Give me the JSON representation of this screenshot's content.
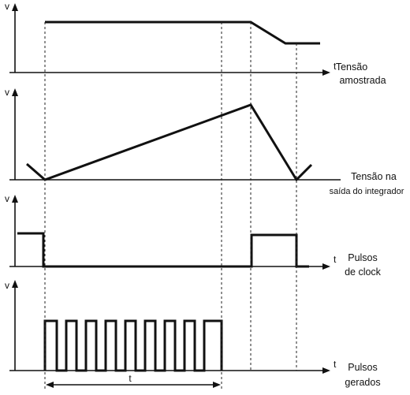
{
  "axis_labels": {
    "v1": "v",
    "t1": "t",
    "v2": "v",
    "v3": "v",
    "t3": "t",
    "v4": "v",
    "t4": "t",
    "t_bottom": "t"
  },
  "captions": {
    "signal1_line1": "Tensão",
    "signal1_line2": "amostrada",
    "signal2_line1": "Tensão na",
    "signal2_line2": "saída do integrador",
    "signal3_line1": "Pulsos",
    "signal3_line2": "de clock",
    "signal4_line1": "Pulsos",
    "signal4_line2": "gerados"
  }
}
